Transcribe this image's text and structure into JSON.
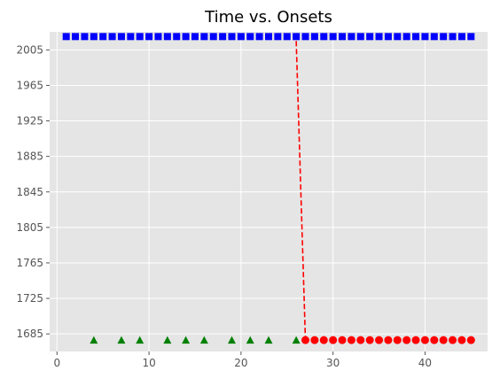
{
  "chart_data": {
    "type": "scatter",
    "title": "Time vs. Onsets",
    "xlabel": "",
    "ylabel": "",
    "xlim": [
      -0.8,
      46.8
    ],
    "ylim": [
      1665.2,
      2025.3
    ],
    "xticks": [
      0,
      10,
      20,
      30,
      40
    ],
    "yticks": [
      1685,
      1725,
      1765,
      1805,
      1845,
      1885,
      1925,
      1965,
      2005
    ],
    "grid": true,
    "background": "#e5e5e5",
    "grid_color": "#ffffff",
    "series": [
      {
        "marker": "square",
        "color": "#0000ff",
        "x": [
          1,
          2,
          3,
          4,
          5,
          6,
          7,
          8,
          9,
          10,
          11,
          12,
          13,
          14,
          15,
          16,
          17,
          18,
          19,
          20,
          21,
          22,
          23,
          24,
          25,
          26,
          27,
          28,
          29,
          30,
          31,
          32,
          33,
          34,
          35,
          36,
          37,
          38,
          39,
          40,
          41,
          42,
          43,
          44,
          45
        ],
        "y": [
          2020,
          2020,
          2020,
          2020,
          2020,
          2020,
          2020,
          2020,
          2020,
          2020,
          2020,
          2020,
          2020,
          2020,
          2020,
          2020,
          2020,
          2020,
          2020,
          2020,
          2020,
          2020,
          2020,
          2020,
          2020,
          2020,
          2020,
          2020,
          2020,
          2020,
          2020,
          2020,
          2020,
          2020,
          2020,
          2020,
          2020,
          2020,
          2020,
          2020,
          2020,
          2020,
          2020,
          2020,
          2020
        ]
      },
      {
        "marker": "triangle",
        "color": "#008000",
        "x": [
          4,
          7,
          9,
          12,
          14,
          16,
          19,
          21,
          23,
          26
        ],
        "y": [
          1678,
          1678,
          1678,
          1678,
          1678,
          1678,
          1678,
          1678,
          1678,
          1678
        ]
      },
      {
        "marker": "circle",
        "color": "#ff0000",
        "x": [
          27,
          28,
          29,
          30,
          31,
          32,
          33,
          34,
          35,
          36,
          37,
          38,
          39,
          40,
          41,
          42,
          43,
          44,
          45
        ],
        "y": [
          1678,
          1678,
          1678,
          1678,
          1678,
          1678,
          1678,
          1678,
          1678,
          1678,
          1678,
          1678,
          1678,
          1678,
          1678,
          1678,
          1678,
          1678,
          1678
        ]
      },
      {
        "marker": "dashed-line",
        "color": "#ff0000",
        "x": [
          26,
          27
        ],
        "y": [
          2015,
          1678
        ]
      }
    ]
  }
}
